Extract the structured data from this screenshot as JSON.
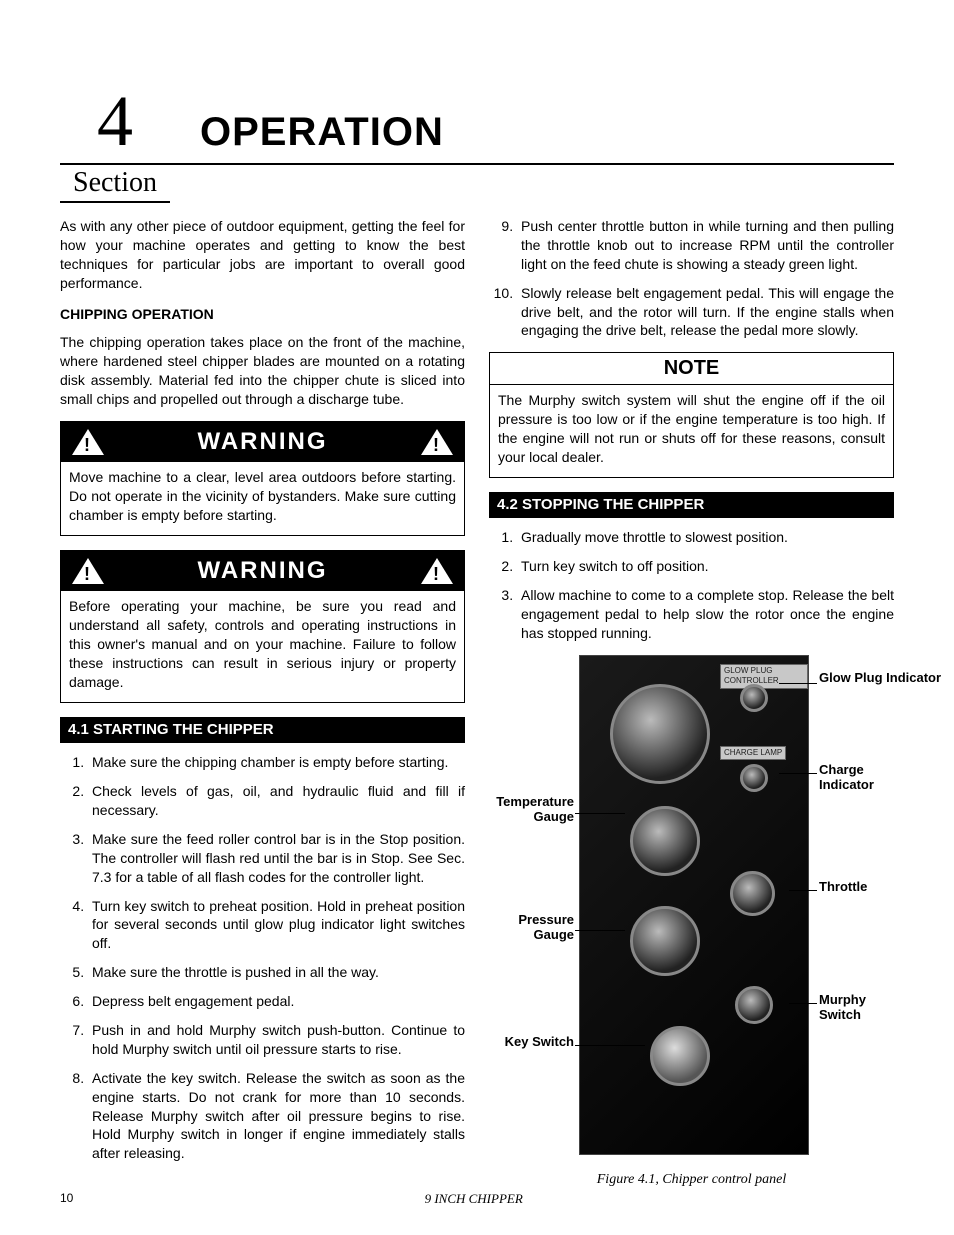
{
  "chapter": {
    "number": "4",
    "title": "OPERATION",
    "section_label": "Section"
  },
  "intro": "As with any other piece of outdoor equipment, getting the feel for how your machine operates and getting to know the best techniques for particular jobs are important to overall good performance.",
  "chipping_head": "CHIPPING OPERATION",
  "chipping_body": "The chipping operation takes place on the front of the machine, where hardened steel chipper blades are mounted on a rotating disk assembly. Material fed into the chipper chute is sliced into small chips and propelled out through a discharge tube.",
  "warnings": {
    "label": "WARNING",
    "w1": "Move machine to a clear, level area outdoors before starting. Do not operate in the vicinity of bystanders. Make sure cutting chamber is empty before starting.",
    "w2": "Before operating your machine, be sure you read and understand all safety, controls and operating instructions in this owner's manual and on your machine. Failure to follow these instructions can result in serious injury or property damage."
  },
  "sec41": {
    "title": "4.1  STARTING THE CHIPPER",
    "items": [
      "Make sure the chipping chamber is empty before starting.",
      "Check levels of gas, oil, and hydraulic fluid and fill if necessary.",
      "Make sure the feed roller control bar is in the Stop position. The controller will flash red until the bar is in Stop. See Sec. 7.3 for a table of all flash codes for the controller light.",
      "Turn key switch to preheat position. Hold in preheat position for several seconds until glow plug indicator light switches off.",
      "Make sure the throttle is pushed in all the way.",
      "Depress belt engagement pedal.",
      "Push in and hold Murphy switch push-button. Continue to hold Murphy switch until oil pressure starts to rise.",
      "Activate the key switch. Release the switch as soon as the engine starts. Do not crank for more than 10 seconds. Release Murphy switch after oil pressure begins to rise. Hold Murphy switch in longer if engine immediately stalls after releasing."
    ]
  },
  "sec41_cont": [
    "Push center throttle button in while turning and then pulling the throttle knob out to increase RPM until the controller light on the feed chute is showing a steady green light.",
    "Slowly release belt engagement pedal. This will engage the drive belt, and the rotor will turn. If the engine stalls when engaging the drive belt, release the pedal more slowly."
  ],
  "note": {
    "label": "NOTE",
    "body": "The Murphy switch system will shut the engine off if the oil pressure is too low or if the engine temperature is too high. If the engine will not run or shuts off for these reasons, consult your local dealer."
  },
  "sec42": {
    "title": "4.2  STOPPING THE CHIPPER",
    "items": [
      "Gradually move throttle to slowest position.",
      "Turn key switch to off position.",
      "Allow machine to come to a complete stop. Release the belt engagement pedal to help slow the rotor once the engine has stopped running."
    ]
  },
  "figure": {
    "caption": "Figure 4.1, Chipper control panel",
    "panel_labels": {
      "glow": "GLOW PLUG CONTROLLER",
      "charge": "CHARGE LAMP"
    },
    "callouts": {
      "glow": "Glow Plug Indicator",
      "charge": "Charge Indicator",
      "temp": "Temperature Gauge",
      "throttle": "Throttle",
      "pressure": "Pressure Gauge",
      "murphy": "Murphy Switch",
      "key": "Key Switch"
    }
  },
  "footer": {
    "page": "10",
    "doc": "9 INCH CHIPPER"
  },
  "colors": {
    "black": "#000000",
    "white": "#ffffff",
    "panel_dark": "#1a1a1a"
  }
}
